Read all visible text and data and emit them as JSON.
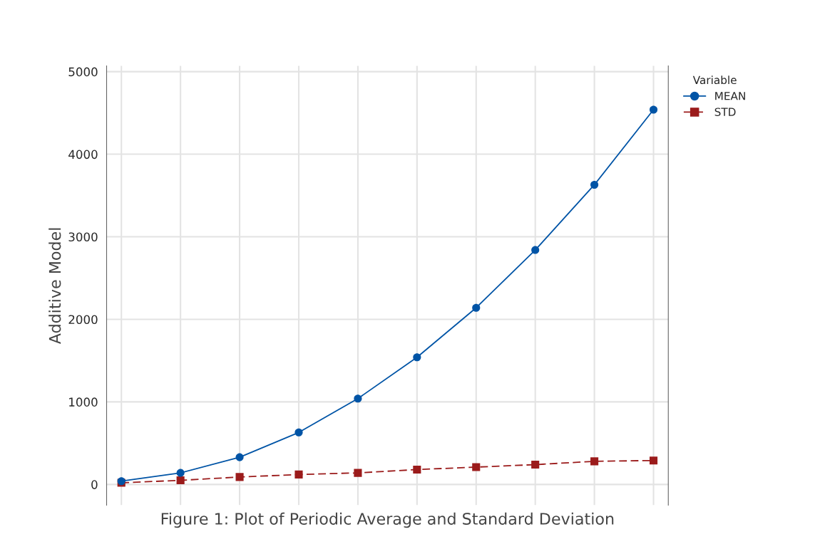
{
  "chart_data": {
    "type": "line",
    "xlabel": "Figure 1: Plot of Periodic Average and Standard Deviation",
    "ylabel": "Additive Model",
    "legend_title": "Variable",
    "categories": [
      null,
      null,
      null,
      null,
      null,
      null,
      null,
      null,
      null,
      null
    ],
    "series": [
      {
        "name": "MEAN",
        "color": "#0054a6",
        "marker": "circle",
        "line_style": "solid",
        "values": [
          40,
          140,
          330,
          630,
          1040,
          1540,
          2140,
          2840,
          3630,
          4540
        ]
      },
      {
        "name": "STD",
        "color": "#9b1b1b",
        "marker": "square",
        "line_style": "dashed",
        "values": [
          20,
          50,
          90,
          120,
          140,
          180,
          210,
          240,
          280,
          290
        ]
      }
    ],
    "ylim": [
      -250,
      5070
    ],
    "yticks": [
      0,
      1000,
      2000,
      3000,
      4000,
      5000
    ],
    "grid": true,
    "legend": "top right"
  }
}
